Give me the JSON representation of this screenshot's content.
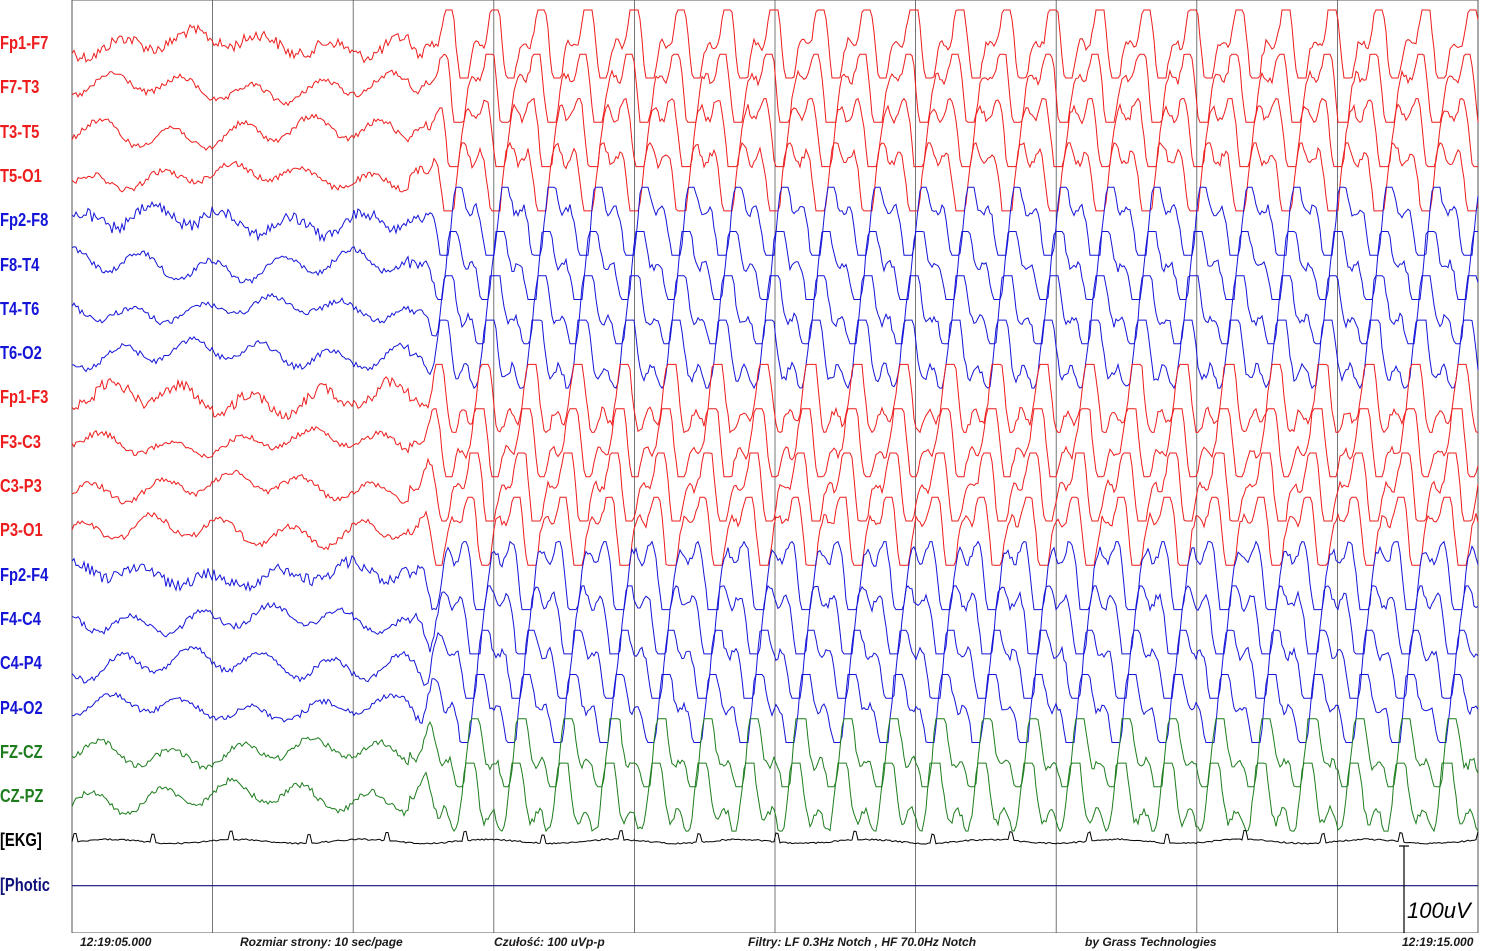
{
  "colors": {
    "left": "#ee1c1c",
    "right": "#1515d8",
    "midline": "#1d7d1d",
    "ekg": "#000000",
    "photic": "#10107a",
    "grid": "#555555"
  },
  "channels": [
    {
      "label": "Fp1-F7",
      "group": "left"
    },
    {
      "label": "F7-T3",
      "group": "left"
    },
    {
      "label": "T3-T5",
      "group": "left"
    },
    {
      "label": "T5-O1",
      "group": "left"
    },
    {
      "label": "Fp2-F8",
      "group": "right"
    },
    {
      "label": "F8-T4",
      "group": "right"
    },
    {
      "label": "T4-T6",
      "group": "right"
    },
    {
      "label": "T6-O2",
      "group": "right"
    },
    {
      "label": "Fp1-F3",
      "group": "left"
    },
    {
      "label": "F3-C3",
      "group": "left"
    },
    {
      "label": "C3-P3",
      "group": "left"
    },
    {
      "label": "P3-O1",
      "group": "left"
    },
    {
      "label": "Fp2-F4",
      "group": "right"
    },
    {
      "label": "F4-C4",
      "group": "right"
    },
    {
      "label": "C4-P4",
      "group": "right"
    },
    {
      "label": "P4-O2",
      "group": "right"
    },
    {
      "label": "FZ-CZ",
      "group": "midline"
    },
    {
      "label": "CZ-PZ",
      "group": "midline"
    },
    {
      "label": "[EKG]",
      "group": "ekg"
    },
    {
      "label": "[Photic",
      "group": "photic"
    }
  ],
  "recording": {
    "seconds_per_page": 10,
    "seizure_onset_second": 2.4
  },
  "footer": {
    "start_time": "12:19:05.000",
    "page_size": "Rozmiar strony: 10 sec/page",
    "sensitivity": "Czułość:  100 uVp-p",
    "filters": "Filtry: LF  0.3Hz Notch , HF 70.0Hz Notch",
    "vendor": "by Grass Technologies",
    "end_time": "12:19:15.000"
  },
  "scale_bar": {
    "label": "100uV"
  }
}
